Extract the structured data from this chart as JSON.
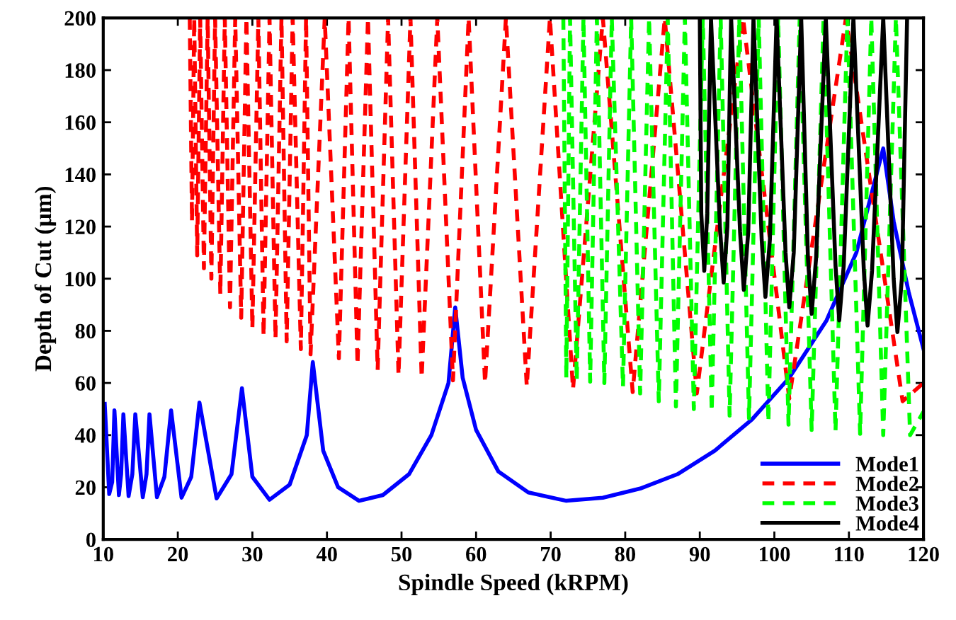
{
  "chart_data": {
    "type": "line",
    "xlabel": "Spindle Speed (kRPM)",
    "ylabel": "Depth of Cut (µm)",
    "xlim": [
      10,
      120
    ],
    "xticks": [
      10,
      20,
      30,
      40,
      50,
      60,
      70,
      80,
      90,
      100,
      110,
      120
    ],
    "ylim": [
      0,
      200
    ],
    "yticks": [
      0,
      20,
      40,
      60,
      80,
      100,
      120,
      140,
      160,
      180,
      200
    ],
    "grid": false,
    "legend": "bottom right",
    "marker": "none",
    "series": [
      {
        "name": "Mode1",
        "color": "#0000ff",
        "line_style": "solid",
        "x": [
          10.2,
          10.8,
          11.2,
          11.5,
          12.1,
          12.4,
          12.7,
          13.4,
          13.9,
          14.3,
          15.3,
          15.8,
          16.2,
          17.2,
          18.2,
          19.1,
          20.5,
          21.8,
          22.9,
          25.2,
          27.2,
          28.6,
          30.0,
          32.3,
          35.0,
          37.3,
          38.1,
          39.5,
          41.5,
          44.3,
          47.5,
          51.0,
          54.0,
          56.3,
          57.2,
          58.2,
          60.0,
          63.0,
          67.0,
          72.1,
          77.0,
          82.0,
          87.0,
          92.0,
          97.0,
          102.0,
          107.0,
          111.0,
          114.6,
          116.0,
          118.0,
          120.0
        ],
        "values": [
          52,
          17.4,
          22,
          49.5,
          17,
          25,
          48,
          16.6,
          25,
          48,
          16.2,
          25,
          48,
          16.2,
          24,
          49.5,
          16,
          24,
          52.5,
          15.7,
          25,
          58,
          24,
          15.2,
          21,
          40,
          68,
          34,
          20,
          14.8,
          17,
          25,
          40,
          60,
          89,
          62,
          42,
          26,
          18,
          14.8,
          16,
          19.5,
          25,
          34,
          46,
          62,
          84,
          110,
          150,
          122,
          95,
          73
        ]
      },
      {
        "name": "Mode2",
        "color": "#ff0000",
        "line_style": "dashed",
        "x": [
          21.6,
          21.9,
          22.2,
          22.6,
          23.0,
          23.5,
          24.0,
          24.5,
          25.0,
          25.7,
          26.3,
          27.0,
          27.7,
          28.5,
          29.2,
          30.0,
          30.8,
          31.5,
          32.3,
          33.1,
          33.9,
          34.6,
          35.4,
          36.5,
          37.2,
          37.8,
          39.7,
          41.6,
          42.9,
          44.1,
          45.5,
          46.8,
          48.2,
          49.6,
          51.2,
          52.7,
          54.8,
          56.9,
          59.0,
          61.2,
          64.0,
          66.8,
          69.9,
          73.0,
          77.0,
          81.0,
          85.3,
          89.6,
          95.8,
          102.0,
          109.6,
          117.2,
          120.0
        ],
        "values": [
          200,
          122,
          200,
          109,
          200,
          104,
          200,
          100,
          200,
          94,
          200,
          89,
          200,
          85,
          200,
          81,
          200,
          78,
          200,
          77,
          200,
          76,
          200,
          73,
          200,
          71,
          200,
          69.5,
          200,
          67,
          200,
          65,
          200,
          63,
          200,
          62,
          200,
          61,
          200,
          60,
          200,
          58.7,
          200,
          57.6,
          200,
          56.5,
          200,
          56,
          200,
          54,
          200,
          53,
          60
        ]
      },
      {
        "name": "Mode3",
        "color": "#00ff00",
        "line_style": "dashed",
        "x": [
          71.7,
          72.1,
          72.6,
          73.5,
          74.4,
          75.3,
          76.2,
          77.2,
          78.2,
          79.7,
          80.8,
          82.0,
          83.2,
          84.5,
          85.7,
          86.8,
          88.0,
          89.2,
          90.4,
          91.6,
          92.8,
          94.0,
          95.3,
          96.6,
          97.9,
          99.2,
          100.5,
          101.9,
          103.4,
          105.0,
          106.6,
          108.2,
          109.8,
          111.5,
          113.0,
          114.6,
          116.3,
          118.2,
          120.0
        ],
        "values": [
          200,
          62,
          200,
          61,
          200,
          60.5,
          200,
          60,
          200,
          58.6,
          200,
          56,
          200,
          53,
          200,
          51,
          200,
          50,
          200,
          49,
          200,
          47.5,
          200,
          46.5,
          200,
          45,
          200,
          44,
          200,
          42,
          200,
          41.5,
          200,
          40.5,
          200,
          40,
          200,
          40,
          49
        ]
      },
      {
        "name": "Mode4",
        "color": "#000000",
        "line_style": "solid",
        "x": [
          90.0,
          90.2,
          90.6,
          91.0,
          91.5,
          92.7,
          93.2,
          93.7,
          94.2,
          95.4,
          95.9,
          96.5,
          97.2,
          98.3,
          98.8,
          99.4,
          100.3,
          101.5,
          102.0,
          102.6,
          103.6,
          104.5,
          105.0,
          105.6,
          106.9,
          108.2,
          108.7,
          109.3,
          110.6,
          112.0,
          112.5,
          113.1,
          114.6,
          116.0,
          116.5,
          117.1,
          117.8
        ],
        "values": [
          200,
          125,
          103,
          125,
          200,
          120,
          98.5,
          120,
          200,
          118,
          95.7,
          118,
          200,
          115,
          93,
          115,
          200,
          110,
          89,
          110,
          200,
          108,
          86.5,
          108,
          200,
          105,
          84,
          105,
          200,
          103,
          82,
          103,
          200,
          100,
          79.5,
          100,
          200
        ]
      }
    ]
  }
}
